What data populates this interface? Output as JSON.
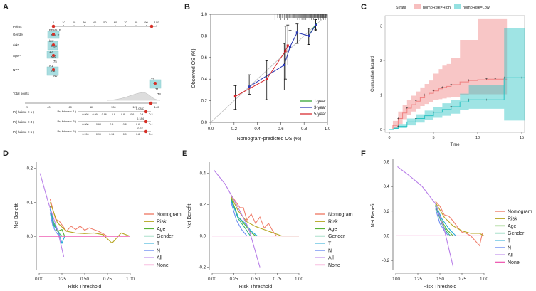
{
  "panel_letters": [
    "A",
    "B",
    "C",
    "D",
    "E",
    "F"
  ],
  "chart_data": [
    {
      "panel": "A",
      "type": "nomogram",
      "rows": [
        {
          "label": "Points",
          "ticks": [
            "0",
            "10",
            "20",
            "30",
            "40",
            "50",
            "60",
            "70",
            "80",
            "90",
            "100"
          ]
        },
        {
          "label": "Gender",
          "ticks": [
            "FEMALE",
            "MALE"
          ]
        },
        {
          "label": "risk*",
          "ticks": [
            "low",
            "high"
          ]
        },
        {
          "label": "Age**",
          "ticks": [
            "10",
            "≤60",
            "75"
          ]
        },
        {
          "label": "N***",
          "ticks": [
            "N1",
            "N2",
            "N0"
          ]
        },
        {
          "label": "T",
          "ticks": [
            "T2",
            "T3",
            "T1",
            "T4"
          ]
        },
        {
          "label": "Total points",
          "ticks": [
            "20",
            "40",
            "60",
            "80",
            "100",
            "120",
            "140"
          ]
        },
        {
          "label": "Pr( futime < 1 )",
          "ticks": [
            "0.998",
            "0.99",
            "0.96",
            "0.9",
            "0.8",
            "0.6",
            "0.4",
            "0.2"
          ],
          "highlight": "0.0847"
        },
        {
          "label": "Pr( futime < 3 )",
          "ticks": [
            "0.996",
            "0.98",
            "0.9",
            "0.8",
            "0.6",
            "0.4"
          ],
          "highlight": "0.184"
        },
        {
          "label": "Pr( futime < 5 )",
          "ticks": [
            "0.996",
            "0.99",
            "0.96",
            "0.9",
            "0.8",
            "0.4"
          ],
          "highlight": "0.37"
        }
      ]
    },
    {
      "panel": "B",
      "type": "line",
      "title": "",
      "xlabel": "Nomogram-predicted OS (%)",
      "ylabel": "Observed OS (%)",
      "xlim": [
        0,
        1.0
      ],
      "ylim": [
        0,
        1.0
      ],
      "xticks": [
        "0.0",
        "0.2",
        "0.4",
        "0.6",
        "0.8",
        "1.0"
      ],
      "yticks": [
        "0.0",
        "0.2",
        "0.4",
        "0.6",
        "0.8",
        "1.0"
      ],
      "series": [
        {
          "name": "1-year",
          "color": "#2ca02c",
          "x": [
            0.84,
            0.9
          ],
          "y": [
            0.8,
            0.91
          ],
          "lo": [
            0.72,
            0.86
          ],
          "hi": [
            0.87,
            0.95
          ]
        },
        {
          "name": "3-year",
          "color": "#2b3ab5",
          "x": [
            0.33,
            0.63,
            0.68,
            0.74,
            0.84,
            0.9
          ],
          "y": [
            0.33,
            0.53,
            0.7,
            0.83,
            0.8,
            0.9
          ],
          "lo": [
            0.26,
            0.3,
            0.55,
            0.73,
            0.72,
            0.85
          ],
          "hi": [
            0.44,
            0.73,
            0.85,
            0.91,
            0.87,
            0.95
          ]
        },
        {
          "name": "5-year",
          "color": "#d7262b",
          "x": [
            0.21,
            0.48,
            0.64,
            0.66
          ],
          "y": [
            0.24,
            0.4,
            0.66,
            0.71
          ],
          "lo": [
            0.12,
            0.21,
            0.4,
            0.53
          ],
          "hi": [
            0.34,
            0.57,
            0.89,
            0.9
          ]
        }
      ],
      "legend": "bottom-right"
    },
    {
      "panel": "C",
      "type": "area",
      "title": "",
      "legend_title": "Strata",
      "xlabel": "Time",
      "ylabel": "Cumulative hazard",
      "xlim": [
        0,
        15
      ],
      "ylim": [
        0,
        3.3
      ],
      "xticks": [
        "0",
        "5",
        "10",
        "15"
      ],
      "yticks": [
        "0",
        "1",
        "2",
        "3"
      ],
      "series": [
        {
          "name": "nomoRisk=High",
          "color": "#f08080",
          "x": [
            0,
            0.4,
            1,
            1.5,
            2,
            2.5,
            3,
            3.5,
            4,
            4.5,
            5,
            5.6,
            6,
            6.5,
            7,
            8,
            9,
            10,
            11,
            11.5,
            12,
            13
          ],
          "y": [
            0,
            0.12,
            0.32,
            0.48,
            0.62,
            0.72,
            0.82,
            0.92,
            1.0,
            1.05,
            1.12,
            1.18,
            1.22,
            1.25,
            1.3,
            1.38,
            1.42,
            1.44,
            1.46,
            1.46,
            1.46,
            1.46
          ],
          "lo": [
            0,
            0.03,
            0.16,
            0.3,
            0.42,
            0.52,
            0.6,
            0.68,
            0.74,
            0.8,
            0.85,
            0.88,
            0.9,
            0.92,
            0.95,
            1.0,
            1.02,
            1.02,
            1.02,
            1.02,
            1.02,
            1.02
          ],
          "hi": [
            0,
            0.25,
            0.52,
            0.7,
            0.85,
            0.98,
            1.1,
            1.22,
            1.32,
            1.42,
            1.62,
            1.75,
            1.85,
            1.9,
            2.08,
            2.6,
            2.6,
            3.2,
            3.2,
            3.2,
            3.2,
            3.2
          ]
        },
        {
          "name": "nomoRisk=Low",
          "color": "#2bc4c4",
          "x": [
            0,
            0.5,
            1,
            2,
            3,
            4,
            5,
            6,
            7,
            8,
            9,
            10,
            11,
            12,
            13,
            14,
            15
          ],
          "y": [
            0,
            0.03,
            0.09,
            0.22,
            0.32,
            0.4,
            0.5,
            0.58,
            0.66,
            0.8,
            0.86,
            0.86,
            0.86,
            0.86,
            1.5,
            1.5,
            1.5
          ],
          "lo": [
            0,
            0.0,
            0.04,
            0.12,
            0.2,
            0.27,
            0.34,
            0.4,
            0.46,
            0.56,
            0.6,
            0.6,
            0.6,
            0.6,
            0.26,
            0.26,
            0.26
          ],
          "hi": [
            0,
            0.08,
            0.16,
            0.32,
            0.44,
            0.55,
            0.66,
            0.76,
            0.86,
            1.04,
            1.28,
            1.28,
            1.28,
            1.28,
            2.95,
            2.95,
            2.95
          ]
        }
      ],
      "legend": "top"
    },
    {
      "panel": "D",
      "type": "line",
      "xlabel": "Risk Threshold",
      "ylabel": "Net Benefit",
      "xlim": [
        0,
        1.0
      ],
      "ylim": [
        -0.1,
        0.22
      ],
      "xticks": [
        "0.00",
        "0.25",
        "0.50",
        "0.75",
        "1.00"
      ],
      "yticks": [
        "0.0",
        "0.1",
        "0.2"
      ],
      "series": [
        {
          "name": "Nomogram",
          "color": "#f07f6d",
          "x": [
            0.12,
            0.15,
            0.18,
            0.22,
            0.26,
            0.3,
            0.35,
            0.4,
            0.45,
            0.5,
            0.55,
            0.6,
            0.65,
            0.7,
            0.75
          ],
          "y": [
            0.11,
            0.08,
            0.05,
            0.045,
            0.03,
            0.015,
            0.03,
            0.02,
            0.03,
            0.018,
            0.025,
            0.02,
            0.015,
            0.008,
            0.0
          ]
        },
        {
          "name": "Risk",
          "color": "#b5a520",
          "x": [
            0.12,
            0.2,
            0.3,
            0.4,
            0.5,
            0.6,
            0.7,
            0.8,
            0.9,
            1.0
          ],
          "y": [
            0.1,
            0.04,
            0.015,
            0.01,
            0.008,
            0.01,
            0.005,
            -0.02,
            0.01,
            0.0
          ]
        },
        {
          "name": "Age",
          "color": "#58b335",
          "x": [
            0.12,
            0.15,
            0.2,
            0.25,
            0.28
          ],
          "y": [
            0.09,
            0.04,
            0.015,
            0.02,
            0.0
          ]
        },
        {
          "name": "Gender",
          "color": "#2db580",
          "x": [
            0.12,
            0.16,
            0.2,
            0.23,
            0.26
          ],
          "y": [
            0.085,
            0.04,
            0.02,
            0.005,
            0.0
          ]
        },
        {
          "name": "T",
          "color": "#26a9d6",
          "x": [
            0.12,
            0.16,
            0.2,
            0.25,
            0.28
          ],
          "y": [
            0.08,
            0.03,
            0.02,
            -0.02,
            0.0
          ]
        },
        {
          "name": "N",
          "color": "#6f8ef2",
          "x": [
            0.12,
            0.15,
            0.18,
            0.22
          ],
          "y": [
            0.07,
            0.03,
            0.015,
            0.0
          ]
        },
        {
          "name": "All",
          "color": "#b77de8",
          "x": [
            0.01,
            0.1,
            0.2,
            0.27
          ],
          "y": [
            0.185,
            0.1,
            0.02,
            -0.06
          ]
        },
        {
          "name": "None",
          "color": "#ee5fb4",
          "x": [
            0,
            1
          ],
          "y": [
            0,
            0
          ]
        }
      ],
      "legend": "right"
    },
    {
      "panel": "E",
      "type": "line",
      "xlabel": "Risk Threshold",
      "ylabel": "Net Benefit",
      "xlim": [
        0,
        1.0
      ],
      "ylim": [
        -0.22,
        0.47
      ],
      "xticks": [
        "0.00",
        "0.25",
        "0.50",
        "0.75",
        "1.00"
      ],
      "yticks": [
        "-0.2",
        "0.0",
        "0.2",
        "0.4"
      ],
      "series": [
        {
          "name": "Nomogram",
          "color": "#f07f6d",
          "x": [
            0.22,
            0.27,
            0.32,
            0.36,
            0.4,
            0.45,
            0.5,
            0.55,
            0.6,
            0.65,
            0.7,
            0.74
          ],
          "y": [
            0.26,
            0.22,
            0.18,
            0.18,
            0.1,
            0.14,
            0.08,
            0.12,
            0.05,
            0.08,
            0.03,
            0.0
          ]
        },
        {
          "name": "Risk",
          "color": "#b5a520",
          "x": [
            0.22,
            0.3,
            0.4,
            0.5,
            0.6,
            0.7,
            0.8,
            0.9,
            1.0
          ],
          "y": [
            0.25,
            0.16,
            0.09,
            0.06,
            0.04,
            0.02,
            0.0,
            0.0,
            0.0
          ]
        },
        {
          "name": "Age",
          "color": "#58b335",
          "x": [
            0.22,
            0.3,
            0.38,
            0.45,
            0.5
          ],
          "y": [
            0.24,
            0.12,
            0.07,
            0.02,
            0.0
          ]
        },
        {
          "name": "Gender",
          "color": "#2db580",
          "x": [
            0.22,
            0.3,
            0.38,
            0.44
          ],
          "y": [
            0.23,
            0.11,
            0.05,
            0.0
          ]
        },
        {
          "name": "T",
          "color": "#26a9d6",
          "x": [
            0.22,
            0.3,
            0.38,
            0.45,
            0.52
          ],
          "y": [
            0.22,
            0.12,
            0.08,
            0.03,
            0.0
          ]
        },
        {
          "name": "N",
          "color": "#6f8ef2",
          "x": [
            0.22,
            0.28,
            0.34,
            0.4
          ],
          "y": [
            0.21,
            0.1,
            0.04,
            0.0
          ]
        },
        {
          "name": "All",
          "color": "#b77de8",
          "x": [
            0.02,
            0.15,
            0.3,
            0.42,
            0.55
          ],
          "y": [
            0.42,
            0.33,
            0.18,
            0.05,
            -0.2
          ]
        },
        {
          "name": "None",
          "color": "#ee5fb4",
          "x": [
            0,
            1
          ],
          "y": [
            0,
            0
          ]
        }
      ],
      "legend": "right"
    },
    {
      "panel": "F",
      "type": "line",
      "xlabel": "Risk Threshold",
      "ylabel": "Net Benefit",
      "xlim": [
        0,
        1.0
      ],
      "ylim": [
        -0.28,
        0.62
      ],
      "xticks": [
        "0.00",
        "0.25",
        "0.50",
        "0.75",
        "1.00"
      ],
      "yticks": [
        "-0.2",
        "0.0",
        "0.2",
        "0.4",
        "0.6"
      ],
      "series": [
        {
          "name": "Nomogram",
          "color": "#f07f6d",
          "x": [
            0.45,
            0.5,
            0.55,
            0.6,
            0.65,
            0.7,
            0.75,
            0.8,
            0.85,
            0.9,
            0.95,
            0.98
          ],
          "y": [
            0.28,
            0.24,
            0.17,
            0.16,
            0.12,
            0.07,
            0.03,
            0.02,
            0.0,
            -0.04,
            -0.08,
            0.02
          ]
        },
        {
          "name": "Risk",
          "color": "#b5a520",
          "x": [
            0.45,
            0.55,
            0.65,
            0.75,
            0.85,
            0.95,
            1.0
          ],
          "y": [
            0.27,
            0.15,
            0.08,
            0.04,
            0.02,
            0.02,
            0.0
          ]
        },
        {
          "name": "Age",
          "color": "#58b335",
          "x": [
            0.45,
            0.52,
            0.58,
            0.65
          ],
          "y": [
            0.25,
            0.12,
            0.05,
            0.0
          ]
        },
        {
          "name": "Gender",
          "color": "#2db580",
          "x": [
            0.45,
            0.52,
            0.58,
            0.62
          ],
          "y": [
            0.24,
            0.1,
            0.03,
            0.0
          ]
        },
        {
          "name": "T",
          "color": "#26a9d6",
          "x": [
            0.45,
            0.52,
            0.6,
            0.68
          ],
          "y": [
            0.26,
            0.14,
            0.06,
            0.0
          ]
        },
        {
          "name": "N",
          "color": "#6f8ef2",
          "x": [
            0.45,
            0.5,
            0.56,
            0.6
          ],
          "y": [
            0.22,
            0.1,
            0.03,
            0.0
          ]
        },
        {
          "name": "All",
          "color": "#b77de8",
          "x": [
            0.02,
            0.15,
            0.3,
            0.45,
            0.55,
            0.65
          ],
          "y": [
            0.56,
            0.49,
            0.4,
            0.26,
            0.05,
            -0.25
          ]
        },
        {
          "name": "None",
          "color": "#ee5fb4",
          "x": [
            0,
            1
          ],
          "y": [
            0,
            0
          ]
        }
      ],
      "legend": "right"
    }
  ]
}
